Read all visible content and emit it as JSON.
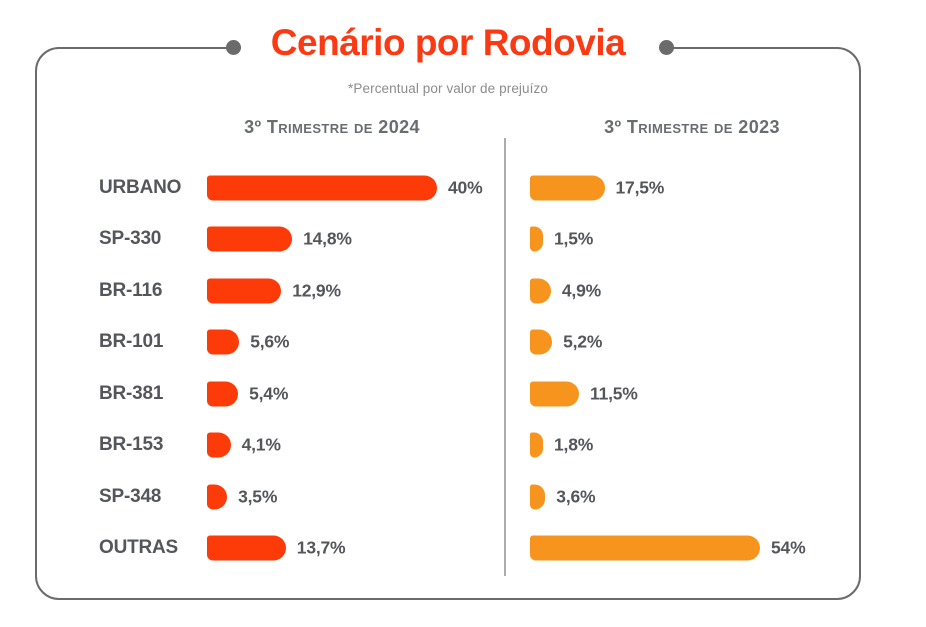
{
  "title": "Cenário por Rodovia",
  "subtitle": "*Percentual por valor de prejuízo",
  "columns": [
    {
      "header": "3º Trimestre de 2024"
    },
    {
      "header": "3º Trimestre de 2023"
    }
  ],
  "colors": {
    "title": "#FB3A14",
    "bar_2024": "#FC3B08",
    "bar_2023": "#F7941E",
    "text": "#54565B",
    "header_text": "#696D71",
    "subtitle_text": "#8C8C8C",
    "card_border": "#6B6B6B",
    "divider": "#ACACAC"
  },
  "chart_data": {
    "type": "bar",
    "orientation": "horizontal",
    "title": "Cenário por Rodovia",
    "subtitle": "*Percentual por valor de prejuízo",
    "unit": "percent of loss value",
    "categories": [
      "URBANO",
      "SP-330",
      "BR-116",
      "BR-101",
      "BR-381",
      "BR-153",
      "SP-348",
      "OUTRAS"
    ],
    "series": [
      {
        "name": "3º Trimestre de 2024",
        "color": "#FC3B08",
        "values": [
          40,
          14.8,
          12.9,
          5.6,
          5.4,
          4.1,
          3.5,
          13.7
        ],
        "labels": [
          "40%",
          "14,8%",
          "12,9%",
          "5,6%",
          "5,4%",
          "4,1%",
          "3,5%",
          "13,7%"
        ]
      },
      {
        "name": "3º Trimestre de 2023",
        "color": "#F7941E",
        "values": [
          17.5,
          1.5,
          4.9,
          5.2,
          11.5,
          1.8,
          3.6,
          54
        ],
        "labels": [
          "17,5%",
          "1,5%",
          "4,9%",
          "5,2%",
          "11,5%",
          "1,8%",
          "3,6%",
          "54%"
        ]
      }
    ],
    "layout_hints": {
      "bars_normalized_per_column": true,
      "grid": false,
      "legend": "column headers act as series labels"
    }
  }
}
